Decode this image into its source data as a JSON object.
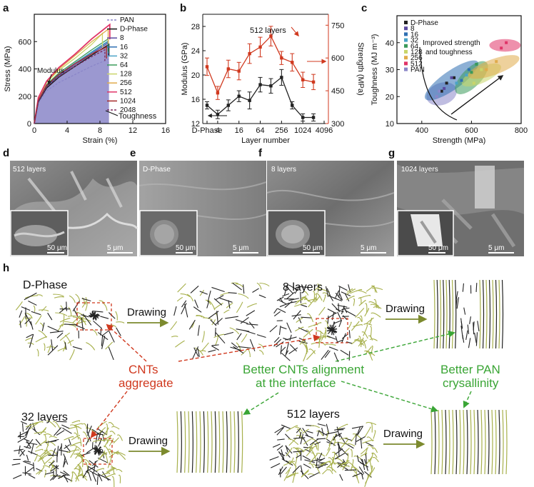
{
  "panels": {
    "a": "a",
    "b": "b",
    "c": "c",
    "d": "d",
    "e": "e",
    "f": "f",
    "g": "g",
    "h": "h"
  },
  "colors": {
    "red_axis": "#d0391f",
    "green_text": "#3aa535",
    "cnt_black": "#222222",
    "pan_green": "#a7b04b",
    "toughness_fill": "#8a86c8"
  },
  "chart_data": [
    {
      "type": "line",
      "panel": "a",
      "xlabel": "Strain (%)",
      "ylabel": "Stress (MPa)",
      "xlim": [
        0,
        16
      ],
      "ylim": [
        0,
        800
      ],
      "xticks": [
        "0",
        "4",
        "8",
        "12",
        "16"
      ],
      "yticks": [
        "0",
        "200",
        "400",
        "600"
      ],
      "annotations": [
        "Modulus",
        "Toughness"
      ],
      "legend_placement": "top-right",
      "series": [
        {
          "name": "PAN",
          "color": "#8a86c8",
          "x": [
            0,
            0.5,
            1.5,
            3,
            5,
            7,
            9
          ],
          "y": [
            0,
            150,
            240,
            300,
            360,
            420,
            470
          ]
        },
        {
          "name": "D-Phase",
          "color": "#111111",
          "x": [
            0,
            0.5,
            1.5,
            3,
            5,
            7,
            9.1
          ],
          "y": [
            0,
            160,
            260,
            340,
            420,
            500,
            580
          ]
        },
        {
          "name": "8",
          "color": "#5b4aa0",
          "x": [
            0,
            0.5,
            1.5,
            3,
            5,
            7,
            9
          ],
          "y": [
            0,
            165,
            270,
            350,
            430,
            510,
            590
          ]
        },
        {
          "name": "16",
          "color": "#2f6fb2",
          "x": [
            0,
            0.5,
            1.5,
            3,
            5,
            7,
            9
          ],
          "y": [
            0,
            170,
            275,
            355,
            440,
            520,
            600
          ]
        },
        {
          "name": "32",
          "color": "#4aa3c7",
          "x": [
            0,
            0.5,
            1.5,
            3,
            5,
            7,
            9
          ],
          "y": [
            0,
            172,
            280,
            360,
            445,
            525,
            605
          ]
        },
        {
          "name": "64",
          "color": "#3a9a5b",
          "x": [
            0,
            0.5,
            1.5,
            3,
            5,
            7,
            9
          ],
          "y": [
            0,
            175,
            285,
            370,
            455,
            540,
            620
          ]
        },
        {
          "name": "128",
          "color": "#c9d56a",
          "x": [
            0,
            0.5,
            1.5,
            3,
            5,
            7,
            8.3
          ],
          "y": [
            0,
            180,
            300,
            390,
            480,
            580,
            660
          ]
        },
        {
          "name": "256",
          "color": "#e0ab4b",
          "x": [
            0,
            0.5,
            1.5,
            3,
            5,
            7,
            9
          ],
          "y": [
            0,
            185,
            305,
            400,
            500,
            600,
            690
          ]
        },
        {
          "name": "512",
          "color": "#e03468",
          "x": [
            0,
            0.5,
            1.5,
            3,
            5,
            7,
            9.2
          ],
          "y": [
            0,
            190,
            310,
            410,
            510,
            620,
            725
          ]
        },
        {
          "name": "1024",
          "color": "#a52a2a",
          "x": [
            0,
            0.5,
            1.5,
            3,
            5,
            7,
            8.8
          ],
          "y": [
            0,
            170,
            280,
            360,
            440,
            510,
            560
          ]
        },
        {
          "name": "2048",
          "color": "#7a2a5e",
          "x": [
            0,
            0.5,
            1.5,
            3,
            5,
            7,
            8.6
          ],
          "y": [
            0,
            165,
            270,
            345,
            420,
            490,
            540
          ]
        }
      ]
    },
    {
      "type": "line",
      "panel": "b",
      "xlabel": "Layer number",
      "ylabel": "Modulus (GPa)",
      "ylabel_right": "Strength (MPa)",
      "categories": [
        "D-Phase",
        "4",
        "8",
        "16",
        "32",
        "64",
        "128",
        "256",
        "512",
        "1024",
        "2048",
        "4096"
      ],
      "xtick_labels": [
        "D-Phase",
        "4",
        "16",
        "64",
        "256",
        "1024",
        "4096"
      ],
      "ylim": [
        12,
        30
      ],
      "yticks": [
        "12",
        "16",
        "20",
        "24",
        "28"
      ],
      "ylim_right": [
        300,
        800
      ],
      "yticks_right": [
        "300",
        "450",
        "600",
        "750"
      ],
      "annotations": [
        "512 layers"
      ],
      "series": [
        {
          "name": "Modulus (GPa)",
          "color": "#222222",
          "x": [
            "D-Phase",
            "4",
            "8",
            "16",
            "32",
            "64",
            "128",
            "256",
            "512",
            "1024",
            "2048"
          ],
          "values": [
            15.0,
            13.5,
            15.0,
            16.5,
            15.8,
            18.4,
            18.2,
            19.6,
            15.0,
            13.0,
            13.0
          ],
          "errors": [
            0.6,
            0.7,
            0.9,
            0.9,
            1.4,
            1.2,
            1.2,
            1.3,
            0.6,
            0.6,
            0.6
          ]
        },
        {
          "name": "Strength (MPa)",
          "color": "#d0391f",
          "x": [
            "D-Phase",
            "4",
            "8",
            "16",
            "32",
            "64",
            "128",
            "256",
            "512",
            "1024",
            "2048"
          ],
          "values": [
            560,
            440,
            550,
            540,
            620,
            650,
            700,
            600,
            580,
            500,
            490
          ],
          "errors": [
            40,
            30,
            40,
            40,
            45,
            45,
            45,
            30,
            40,
            35,
            35
          ]
        }
      ]
    },
    {
      "type": "scatter",
      "panel": "c",
      "xlabel": "Strength (MPa)",
      "ylabel": "Toughness (MJ m⁻³)",
      "xlim": [
        300,
        800
      ],
      "ylim": [
        10,
        50
      ],
      "xticks": [
        "400",
        "600",
        "800"
      ],
      "yticks": [
        "10",
        "20",
        "30",
        "40"
      ],
      "annotations": [
        "Improved strength",
        "and toughness"
      ],
      "legend_placement": "top-left",
      "series": [
        {
          "name": "D-Phase",
          "color": "#222222",
          "points": [
            [
              480,
              22
            ],
            [
              500,
              25
            ],
            [
              530,
              27
            ]
          ]
        },
        {
          "name": "8",
          "color": "#5b4aa0",
          "points": [
            [
              490,
              23
            ],
            [
              520,
              27
            ]
          ]
        },
        {
          "name": "16",
          "color": "#2f6fb2",
          "points": [
            [
              560,
              26
            ],
            [
              590,
              30
            ]
          ]
        },
        {
          "name": "32",
          "color": "#4aa3c7",
          "points": [
            [
              540,
              25
            ],
            [
              580,
              28
            ]
          ]
        },
        {
          "name": "64",
          "color": "#3a9a5b",
          "points": [
            [
              600,
              29
            ],
            [
              620,
              32
            ]
          ]
        },
        {
          "name": "128",
          "color": "#c9d56a",
          "points": [
            [
              610,
              25
            ],
            [
              640,
              30
            ]
          ]
        },
        {
          "name": "256",
          "color": "#e0ab4b",
          "points": [
            [
              660,
              30
            ],
            [
              700,
              33
            ]
          ]
        },
        {
          "name": "512",
          "color": "#e03468",
          "points": [
            [
              720,
              38
            ],
            [
              740,
              40
            ]
          ]
        },
        {
          "name": "PAN",
          "color": "#8a86c8",
          "points": [
            [
              460,
              20
            ],
            [
              470,
              22
            ]
          ]
        }
      ]
    }
  ],
  "sem_labels": {
    "d": "512 layers",
    "e": "D-Phase",
    "f": "8 layers",
    "g": "1024 layers",
    "scale_50": "50 μm",
    "scale_5": "5 μm"
  },
  "schematic": {
    "dphase": "D-Phase",
    "l8": "8 layers",
    "l32": "32 layers",
    "l512": "512 layers",
    "drawing": "Drawing",
    "cnt_agg_1": "CNTs",
    "cnt_agg_2": "aggregate",
    "align_1": "Better CNTs alignment",
    "align_2": "at the interface",
    "pan_1": "Better PAN",
    "pan_2": "crysallinity"
  }
}
